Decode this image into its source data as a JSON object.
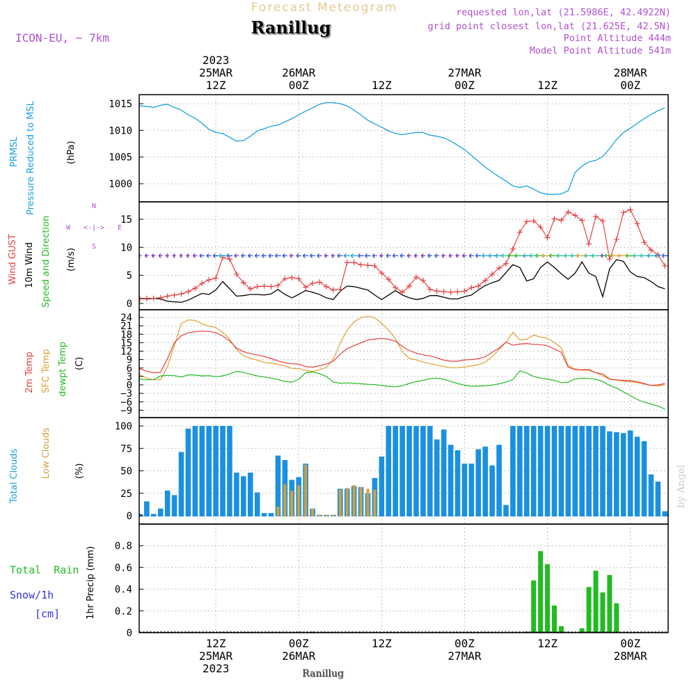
{
  "header": {
    "product_title": "Forecast Meteogram",
    "location": "Ranillug",
    "model": "ICON-EU, ~ 7km",
    "requested": "requested lon,lat (21.5986E, 42.4922N)",
    "grid_point": "grid point closest lon,lat (21.625E, 42.5N)",
    "point_altitude": "Point Altitude 444m",
    "model_altitude": "Model Point Altitude 541m"
  },
  "footer": {
    "location": "Ranillug",
    "watermark": "by Angel"
  },
  "time_axis": {
    "top": [
      {
        "hour": 12,
        "lines": [
          "2023",
          "25MAR",
          "12Z"
        ]
      },
      {
        "hour": 24,
        "lines": [
          "26MAR",
          "00Z"
        ]
      },
      {
        "hour": 36,
        "lines": [
          "12Z"
        ]
      },
      {
        "hour": 48,
        "lines": [
          "27MAR",
          "00Z"
        ]
      },
      {
        "hour": 60,
        "lines": [
          "12Z"
        ]
      },
      {
        "hour": 72,
        "lines": [
          "28MAR",
          "00Z"
        ]
      }
    ],
    "bottom": [
      {
        "hour": 12,
        "lines": [
          "12Z",
          "25MAR",
          "2023"
        ]
      },
      {
        "hour": 24,
        "lines": [
          "00Z",
          "26MAR"
        ]
      },
      {
        "hour": 36,
        "lines": [
          "12Z"
        ]
      },
      {
        "hour": 48,
        "lines": [
          "00Z",
          "27MAR"
        ]
      },
      {
        "hour": 60,
        "lines": [
          "12Z"
        ]
      },
      {
        "hour": 72,
        "lines": [
          "00Z",
          "28MAR"
        ]
      }
    ],
    "start": "2023-03-25 00Z",
    "range_hours": [
      0,
      77
    ]
  },
  "colors": {
    "pressure": "#1aa0e0",
    "gust": "#e84040",
    "wind": "#000000",
    "direction": "#22bb22",
    "sfc_temp": "#e0a030",
    "dewpoint": "#22bb22",
    "total_clouds": "#1a90e0",
    "low_clouds": "#d4a040",
    "rain": "#22bb22",
    "snow": "#3333dd",
    "info": "#b050d0",
    "title_faint": "#e8c890"
  },
  "chart_data": [
    {
      "type": "line",
      "name": "pressure",
      "labels": [
        "PRMSL",
        "Pressure Reduced to MSL",
        "(hPa)"
      ],
      "yticks": [
        1000,
        1005,
        1010,
        1015
      ],
      "ylim": [
        996,
        1016.5
      ],
      "x": [
        0,
        1,
        2,
        3,
        4,
        5,
        6,
        7,
        8,
        9,
        10,
        11,
        12,
        13,
        14,
        15,
        16,
        17,
        18,
        19,
        20,
        21,
        22,
        23,
        24,
        25,
        26,
        27,
        28,
        29,
        30,
        31,
        32,
        33,
        34,
        35,
        36,
        37,
        38,
        39,
        40,
        41,
        42,
        43,
        44,
        45,
        46,
        47,
        48,
        49,
        50,
        51,
        52,
        53,
        54,
        55,
        56,
        57,
        58,
        59,
        60,
        61,
        62,
        63,
        64,
        65,
        66,
        67,
        68,
        69,
        70,
        71,
        72,
        73,
        74,
        75,
        76,
        77
      ],
      "series": [
        {
          "values": [
            1014.6,
            1014.6,
            1014.5,
            1014.3,
            1014.7,
            1014.9,
            1014.3,
            1013.8,
            1012.9,
            1012.3,
            1011.3,
            1010.2,
            1009.6,
            1009.4,
            1008.7,
            1008.0,
            1008.1,
            1008.9,
            1009.9,
            1010.3,
            1010.8,
            1011.0,
            1011.6,
            1012.2,
            1012.9,
            1013.6,
            1014.2,
            1014.9,
            1015.2,
            1015.2,
            1015.0,
            1014.6,
            1013.8,
            1012.9,
            1011.9,
            1011.2,
            1010.6,
            1009.9,
            1009.4,
            1009.2,
            1009.4,
            1009.6,
            1009.6,
            1009.1,
            1008.9,
            1008.6,
            1008.0,
            1007.2,
            1006.4,
            1005.3,
            1004.2,
            1003.1,
            1002.2,
            1001.3,
            1000.5,
            999.6,
            999.3,
            999.6,
            999.0,
            998.3,
            998.0,
            998.0,
            998.1,
            998.7,
            1002.1,
            1003.3,
            1004.1,
            1004.4,
            1005.1,
            1006.6,
            1008.3,
            1009.6,
            1010.4,
            1011.3,
            1012.2,
            1013.0,
            1013.7,
            1014.2
          ]
        }
      ]
    },
    {
      "type": "line",
      "name": "wind",
      "labels": [
        "Wind GUST",
        "10m Wind",
        "Speed and Direction",
        "(m/s)"
      ],
      "compass": {
        "n": "N",
        "s": "S",
        "w": "W",
        "e": "E",
        "arrow": "<-|->",
        "s_line": "S<-|->"
      },
      "yticks": [
        0,
        5,
        10,
        15
      ],
      "ylim": [
        -1,
        18
      ],
      "x": [
        0,
        1,
        2,
        3,
        4,
        5,
        6,
        7,
        8,
        9,
        10,
        11,
        12,
        13,
        14,
        15,
        16,
        17,
        18,
        19,
        20,
        21,
        22,
        23,
        24,
        25,
        26,
        27,
        28,
        29,
        30,
        31,
        32,
        33,
        34,
        35,
        36,
        37,
        38,
        39,
        40,
        41,
        42,
        43,
        44,
        45,
        46,
        47,
        48,
        49,
        50,
        51,
        52,
        53,
        54,
        55,
        56,
        57,
        58,
        59,
        60,
        61,
        62,
        63,
        64,
        65,
        66,
        67,
        68,
        69,
        70,
        71,
        72,
        73,
        74,
        75,
        76,
        77
      ],
      "series": [
        {
          "values": [
            0.8,
            0.8,
            0.9,
            0.9,
            1.0,
            1.3,
            1.5,
            1.7,
            2.1,
            2.7,
            3.6,
            4.2,
            4.5,
            8.2,
            7.9,
            5.2,
            3.7,
            2.6,
            3.0,
            3.1,
            3.0,
            3.2,
            4.4,
            4.6,
            4.4,
            2.9,
            3.6,
            3.8,
            3.0,
            2.4,
            2.5,
            7.3,
            7.3,
            6.9,
            6.8,
            6.7,
            5.4,
            4.3,
            2.8,
            2.0,
            3.1,
            4.7,
            4.1,
            2.5,
            2.2,
            2.1,
            2.0,
            2.1,
            2.2,
            2.8,
            3.1,
            4.1,
            5.2,
            6.3,
            7.1,
            9.7,
            12.7,
            14.6,
            14.7,
            13.6,
            11.7,
            15.1,
            14.8,
            16.3,
            15.7,
            14.8,
            10.6,
            15.5,
            14.7,
            7.9,
            11.4,
            16.2,
            16.7,
            14.2,
            10.9,
            9.5,
            8.7,
            6.7
          ]
        },
        {
          "values": [
            0.9,
            0.9,
            0.8,
            0.9,
            0.8,
            0.4,
            0.3,
            0.2,
            0.6,
            1.2,
            1.8,
            1.6,
            2.4,
            3.9,
            2.6,
            1.3,
            1.4,
            1.6,
            1.6,
            1.5,
            1.7,
            2.5,
            1.6,
            1.0,
            1.6,
            2.3,
            2.0,
            1.6,
            1.0,
            0.7,
            2.2,
            3.1,
            3.0,
            2.7,
            2.4,
            1.5,
            0.7,
            1.5,
            2.3,
            1.5,
            1.0,
            0.7,
            0.9,
            1.4,
            1.4,
            1.1,
            0.8,
            0.8,
            1.2,
            1.5,
            2.4,
            3.2,
            3.7,
            4.1,
            5.5,
            6.9,
            6.4,
            4.0,
            4.4,
            6.4,
            7.4,
            6.4,
            5.3,
            4.3,
            5.4,
            7.4,
            5.4,
            4.8,
            1.2,
            6.2,
            7.8,
            7.5,
            5.6,
            4.8,
            4.6,
            3.9,
            3.0,
            2.6
          ]
        }
      ]
    },
    {
      "type": "line",
      "name": "temperature",
      "labels": [
        "2m Temp",
        "SFC Temp",
        "dewpt Temp",
        "(C)"
      ],
      "yticks": [
        -9,
        -6,
        -3,
        0,
        3,
        6,
        9,
        12,
        15,
        18,
        21,
        24
      ],
      "ylim": [
        -10.5,
        25.5
      ],
      "x": [
        0,
        1,
        2,
        3,
        4,
        5,
        6,
        7,
        8,
        9,
        10,
        11,
        12,
        13,
        14,
        15,
        16,
        17,
        18,
        19,
        20,
        21,
        22,
        23,
        24,
        25,
        26,
        27,
        28,
        29,
        30,
        31,
        32,
        33,
        34,
        35,
        36,
        37,
        38,
        39,
        40,
        41,
        42,
        43,
        44,
        45,
        46,
        47,
        48,
        49,
        50,
        51,
        52,
        53,
        54,
        55,
        56,
        57,
        58,
        59,
        60,
        61,
        62,
        63,
        64,
        65,
        66,
        67,
        68,
        69,
        70,
        71,
        72,
        73,
        74,
        75,
        76,
        77
      ],
      "series": [
        {
          "values": [
            7.1,
            5.7,
            4.8,
            4.3,
            4.5,
            9.3,
            15.0,
            17.5,
            18.5,
            18.9,
            19.1,
            19.0,
            18.5,
            17.4,
            15.6,
            13.1,
            11.8,
            11.1,
            10.6,
            10.1,
            9.4,
            8.5,
            7.9,
            7.5,
            7.4,
            6.5,
            6.3,
            6.8,
            7.4,
            8.4,
            10.9,
            12.9,
            13.9,
            15.0,
            15.9,
            16.3,
            16.5,
            16.2,
            15.5,
            13.7,
            12.2,
            11.3,
            10.7,
            10.3,
            9.6,
            8.8,
            8.4,
            8.4,
            8.9,
            9.0,
            9.3,
            10.0,
            11.6,
            13.1,
            15.2,
            14.1,
            14.5,
            14.7,
            14.4,
            14.3,
            13.9,
            12.8,
            11.6,
            6.3,
            5.4,
            5.4,
            5.5,
            4.3,
            3.9,
            2.1,
            1.8,
            1.6,
            1.5,
            1.1,
            0.5,
            -0.2,
            0.0,
            0.5
          ]
        },
        {
          "values": [
            5.0,
            3.6,
            2.4,
            1.8,
            1.8,
            6.4,
            14.1,
            21.8,
            23.1,
            22.9,
            21.7,
            20.9,
            20.4,
            18.7,
            16.2,
            12.6,
            10.3,
            9.4,
            8.8,
            8.0,
            7.7,
            7.3,
            6.7,
            5.9,
            5.8,
            5.1,
            4.8,
            5.4,
            6.2,
            9.1,
            14.8,
            19.5,
            22.4,
            23.9,
            24.4,
            23.8,
            21.9,
            19.4,
            16.4,
            11.8,
            9.4,
            8.9,
            8.1,
            7.6,
            7.0,
            6.5,
            6.1,
            6.1,
            6.4,
            6.7,
            7.2,
            8.1,
            10.0,
            12.6,
            15.1,
            18.7,
            15.9,
            16.2,
            17.7,
            17.0,
            16.6,
            15.1,
            13.2,
            6.8,
            5.7,
            5.2,
            5.2,
            4.3,
            3.3,
            2.0,
            1.7,
            1.3,
            1.2,
            0.8,
            0.3,
            -0.2,
            -0.4,
            0.1
          ]
        },
        {
          "values": [
            2.3,
            2.1,
            1.8,
            1.9,
            3.2,
            3.4,
            3.3,
            2.8,
            3.6,
            3.5,
            3.2,
            3.3,
            2.9,
            3.2,
            3.9,
            4.8,
            4.4,
            3.8,
            3.2,
            2.8,
            2.4,
            1.9,
            1.2,
            1.0,
            2.0,
            4.3,
            4.6,
            4.0,
            3.0,
            1.0,
            0.6,
            0.7,
            0.6,
            0.4,
            0.2,
            0.1,
            -0.2,
            -0.5,
            -0.7,
            -0.3,
            0.5,
            1.2,
            1.6,
            2.2,
            2.4,
            2.0,
            1.2,
            0.5,
            -0.1,
            -0.5,
            -0.4,
            -0.3,
            -0.1,
            0.4,
            1.0,
            1.9,
            5.0,
            4.2,
            3.0,
            2.4,
            2.0,
            1.6,
            0.8,
            1.0,
            2.1,
            2.4,
            2.3,
            2.0,
            1.2,
            -0.2,
            -1.1,
            -2.5,
            -3.8,
            -5.2,
            -6.1,
            -6.8,
            -7.5,
            -8.6
          ]
        }
      ]
    },
    {
      "type": "bar",
      "name": "clouds",
      "labels": [
        "Total Clouds",
        "Low Clouds",
        "(%)"
      ],
      "yticks": [
        0,
        25,
        50,
        75,
        100
      ],
      "ylim": [
        -5,
        105
      ],
      "x": [
        0,
        1,
        2,
        3,
        4,
        5,
        6,
        7,
        8,
        9,
        10,
        11,
        12,
        13,
        14,
        15,
        16,
        17,
        18,
        19,
        20,
        21,
        22,
        23,
        24,
        25,
        26,
        27,
        28,
        29,
        30,
        31,
        32,
        33,
        34,
        35,
        36,
        37,
        38,
        39,
        40,
        41,
        42,
        43,
        44,
        45,
        46,
        47,
        48,
        49,
        50,
        51,
        52,
        53,
        54,
        55,
        56,
        57,
        58,
        59,
        60,
        61,
        62,
        63,
        64,
        65,
        66,
        67,
        68,
        69,
        70,
        71,
        72,
        73,
        74,
        75,
        76,
        77
      ],
      "series": [
        {
          "values": [
            15,
            2,
            16,
            2,
            8,
            28,
            23,
            71,
            97,
            100,
            100,
            100,
            100,
            100,
            100,
            48,
            44,
            48,
            26,
            3,
            3,
            67,
            62,
            40,
            43,
            58,
            8,
            1,
            1,
            1,
            30,
            30,
            33,
            32,
            25,
            42,
            66,
            100,
            100,
            100,
            100,
            100,
            100,
            100,
            85,
            96,
            79,
            73,
            58,
            58,
            74,
            77,
            56,
            79,
            12,
            100,
            100,
            100,
            100,
            100,
            100,
            100,
            100,
            100,
            100,
            100,
            100,
            100,
            100,
            94,
            93,
            92,
            95,
            88,
            83,
            46,
            38,
            5
          ]
        },
        {
          "values": [
            0,
            0,
            0,
            0,
            0,
            0,
            0,
            0,
            0,
            0,
            0,
            0,
            0,
            0,
            0,
            0,
            0,
            0,
            0,
            0,
            0,
            10,
            35,
            28,
            34,
            57,
            8,
            1,
            1,
            1,
            29,
            31,
            34,
            32,
            30,
            29,
            0,
            0,
            0,
            0,
            0,
            0,
            0,
            0,
            0,
            0,
            0,
            0,
            0,
            0,
            0,
            0,
            0,
            0,
            0,
            0,
            0,
            0,
            0,
            0,
            0,
            0,
            0,
            0,
            0,
            0,
            0,
            0,
            0,
            0,
            0,
            0,
            0,
            0,
            0,
            0,
            0,
            0
          ]
        }
      ]
    },
    {
      "type": "bar",
      "name": "precipitation",
      "labels": [
        "Total  Rain",
        "Snow/1h",
        "[cm]",
        "1hr Precip (mm)"
      ],
      "yticks": [
        0,
        0.2,
        0.4,
        0.6,
        0.8
      ],
      "ylim": [
        0,
        0.97
      ],
      "x": [
        24,
        26,
        57,
        58,
        59,
        60,
        61,
        62,
        65,
        66,
        67,
        68,
        69,
        70
      ],
      "series": [
        {
          "values": [
            0.01,
            0.01,
            0.01,
            0.48,
            0.75,
            0.63,
            0.25,
            0.06,
            0.04,
            0.42,
            0.57,
            0.37,
            0.53,
            0.27
          ]
        }
      ]
    }
  ]
}
